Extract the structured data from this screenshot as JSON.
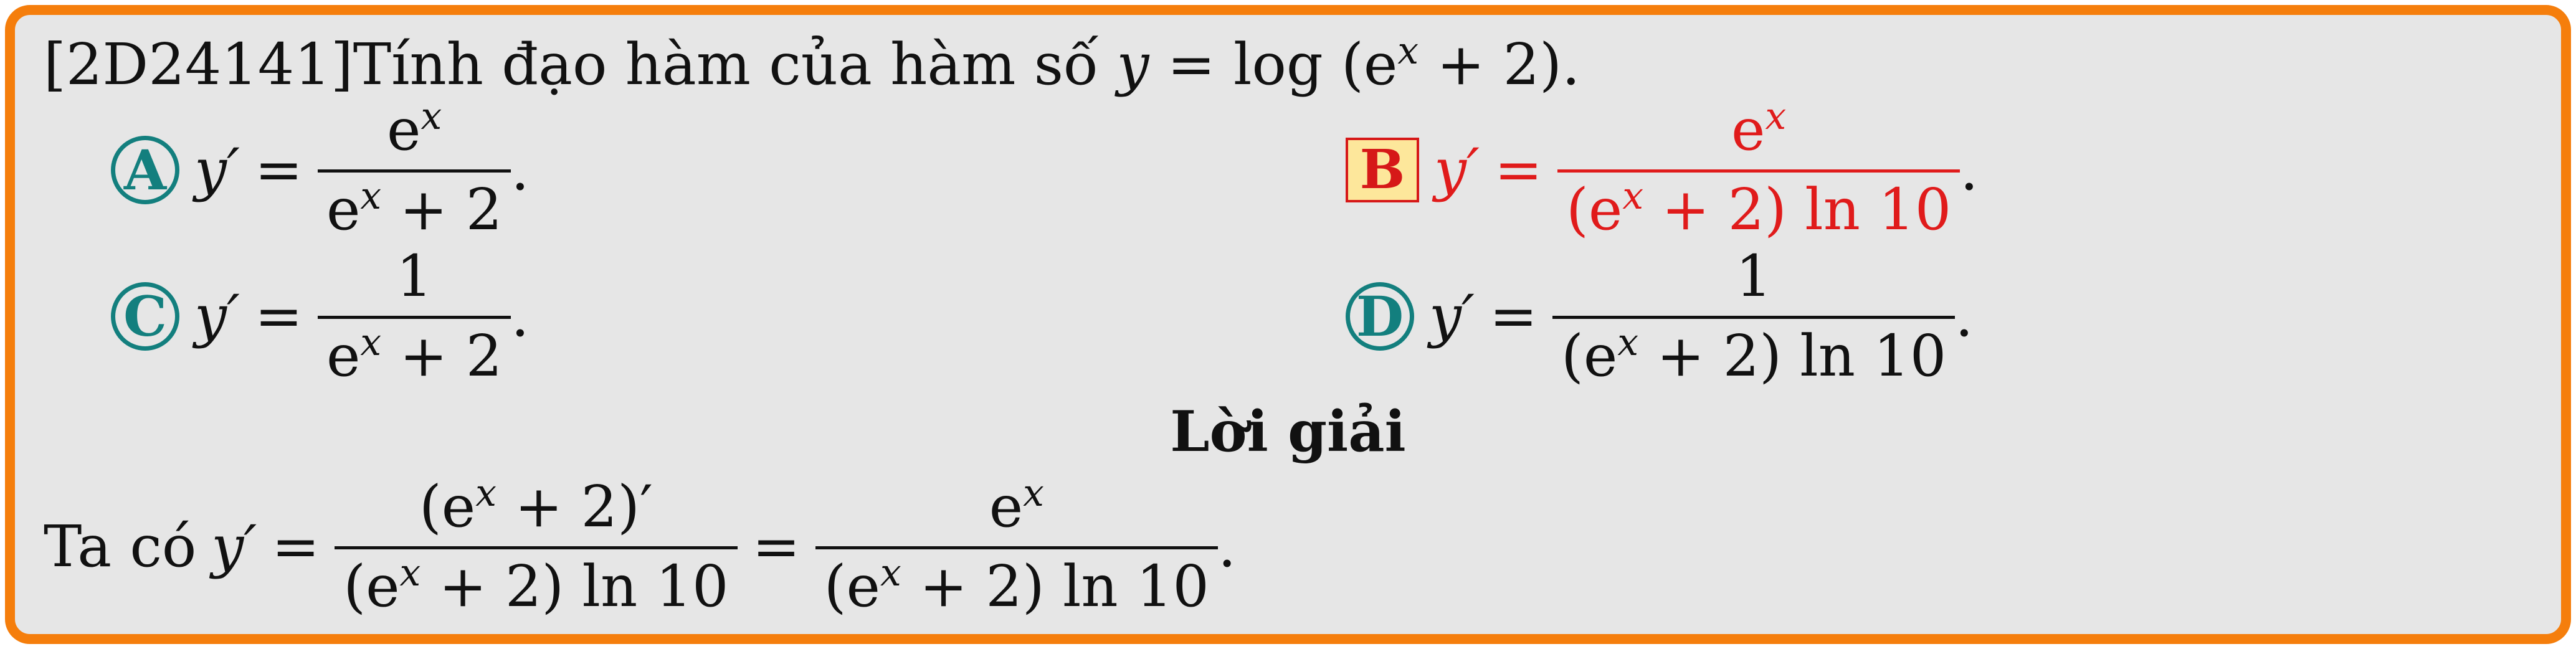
{
  "question": {
    "code": "[2D24141]",
    "text": "Tính đạo hàm của hàm số",
    "func_lhs": "y",
    "func_rhs": "log (e",
    "func_exp": "x",
    "func_tail": "+ 2).",
    "eq": "="
  },
  "options": {
    "A": {
      "label": "A",
      "lhs": "y′",
      "num": "e",
      "num_exp": "x",
      "den": "e",
      "den_exp": "x",
      "den_tail": "+ 2",
      "end": "."
    },
    "B": {
      "label": "B",
      "lhs": "y′",
      "num": "e",
      "num_exp": "x",
      "den": "(e",
      "den_exp": "x",
      "den_tail": "+ 2) ln 10",
      "end": "."
    },
    "C": {
      "label": "C",
      "lhs": "y′",
      "num": "1",
      "den": "e",
      "den_exp": "x",
      "den_tail": "+ 2",
      "end": "."
    },
    "D": {
      "label": "D",
      "lhs": "y′",
      "num": "1",
      "den": "(e",
      "den_exp": "x",
      "den_tail": "+ 2) ln 10",
      "end": "."
    }
  },
  "correct_answer": "B",
  "solution": {
    "heading": "Lời giải",
    "intro": "Ta có",
    "lhs": "y′",
    "f1_num": "(e",
    "f1_num_exp": "x",
    "f1_num_tail": "+ 2)′",
    "f1_den": "(e",
    "f1_den_exp": "x",
    "f1_den_tail": "+ 2) ln 10",
    "f2_num": "e",
    "f2_num_exp": "x",
    "f2_den": "(e",
    "f2_den_exp": "x",
    "f2_den_tail": "+ 2) ln 10",
    "end": "."
  },
  "colors": {
    "frame": "#f57e0c",
    "background": "#e6e6e6",
    "option_circle": "#137f7e",
    "correct": "#e01b1b",
    "correct_box_fill": "#fde79b"
  }
}
